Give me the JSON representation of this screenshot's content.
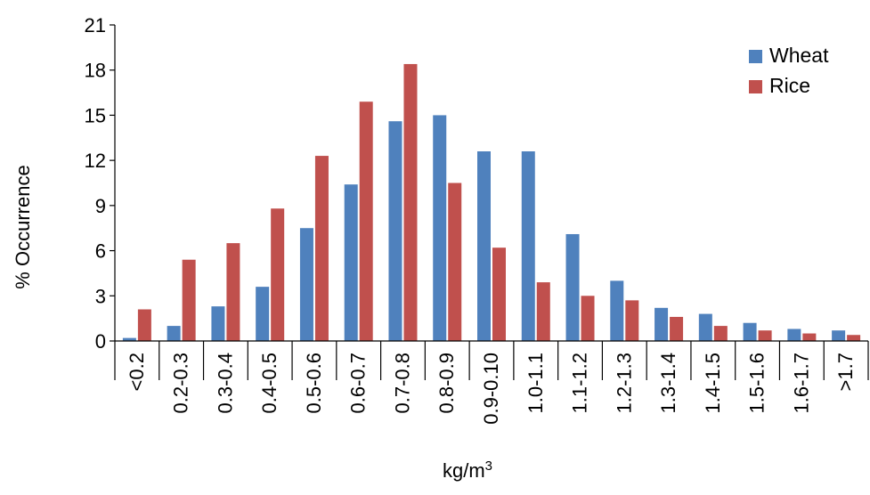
{
  "chart_data": {
    "type": "bar",
    "title": "",
    "xlabel": "kg/m",
    "xlabel_superscript": "3",
    "ylabel": "% Occurrence",
    "ylim": [
      0,
      21
    ],
    "yticks": [
      "0",
      "3",
      "6",
      "9",
      "12",
      "15",
      "18",
      "21"
    ],
    "grid": false,
    "legend_position": "top-right",
    "categories": [
      "<0.2",
      "0.2-0.3",
      "0.3-0.4",
      "0.4-0.5",
      "0.5-0.6",
      "0.6-0.7",
      "0.7-0.8",
      "0.8-0.9",
      "0.9-0.10",
      "1.0-1.1",
      "1.1-1.2",
      "1.2-1.3",
      "1.3-1.4",
      "1.4-1.5",
      "1.5-1.6",
      "1.6-1.7",
      ">1.7"
    ],
    "series": [
      {
        "name": "Wheat",
        "color": "#4F81BD",
        "values": [
          0.2,
          1.0,
          2.3,
          3.6,
          7.5,
          10.4,
          14.6,
          15.0,
          12.6,
          12.6,
          7.1,
          4.0,
          2.2,
          1.8,
          1.2,
          0.8,
          0.7
        ]
      },
      {
        "name": "Rice",
        "color": "#C0504D",
        "values": [
          2.1,
          5.4,
          6.5,
          8.8,
          12.3,
          15.9,
          18.4,
          10.5,
          6.2,
          3.9,
          3.0,
          2.7,
          1.6,
          1.0,
          0.7,
          0.5,
          0.4
        ]
      }
    ]
  }
}
